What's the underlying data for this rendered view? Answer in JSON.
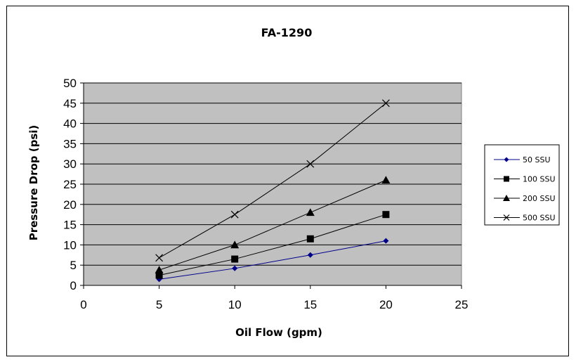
{
  "chart_data": {
    "type": "line",
    "title": "FA-1290",
    "xlabel": "Oil Flow (gpm)",
    "ylabel": "Pressure Drop (psi)",
    "xlim": [
      0,
      25
    ],
    "ylim": [
      0,
      50
    ],
    "xticks": [
      0,
      5,
      10,
      15,
      20,
      25
    ],
    "yticks": [
      0,
      5,
      10,
      15,
      20,
      25,
      30,
      35,
      40,
      45,
      50
    ],
    "x": [
      5,
      10,
      15,
      20
    ],
    "grid": "horizontal",
    "legend_position": "right",
    "plot_background": "#c0c0c0",
    "series": [
      {
        "name": "50 SSU",
        "values": [
          1.5,
          4.2,
          7.5,
          11
        ],
        "color": "#00008b",
        "marker": "diamond"
      },
      {
        "name": "100 SSU",
        "values": [
          2.5,
          6.5,
          11.5,
          17.5
        ],
        "color": "#000000",
        "marker": "square"
      },
      {
        "name": "200 SSU",
        "values": [
          3.8,
          10,
          18,
          26
        ],
        "color": "#000000",
        "marker": "triangle"
      },
      {
        "name": "500 SSU",
        "values": [
          6.8,
          17.5,
          30,
          45
        ],
        "color": "#000000",
        "marker": "x"
      }
    ]
  }
}
